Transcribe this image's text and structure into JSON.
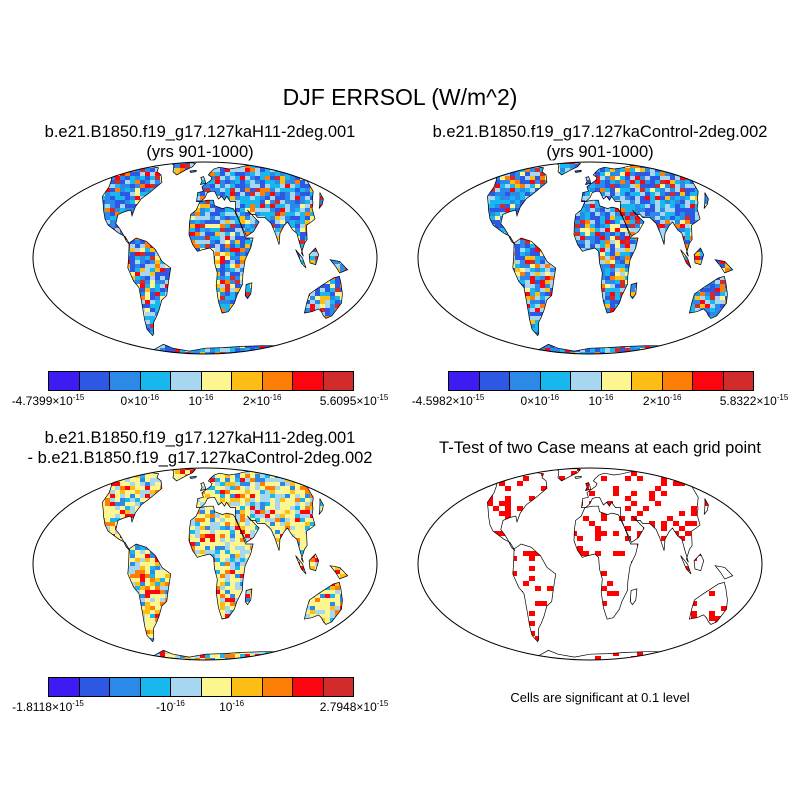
{
  "main_title": "DJF ERRSOL (W/m^2)",
  "panels": [
    {
      "id": "p1",
      "title_lines": [
        "b.e21.B1850.f19_g17.127kaH11-2deg.001",
        "(yrs 901-1000)"
      ],
      "colorbar": {
        "colors": [
          "#3c1cf2",
          "#2d58e3",
          "#2b8ae8",
          "#18b8ee",
          "#a6d6f0",
          "#fdf690",
          "#fcbd14",
          "#fd7e06",
          "#fb0511",
          "#d22b2c"
        ],
        "labels": [
          {
            "mant": "-4.7399",
            "exp": "-15"
          },
          {
            "mant": "0",
            "exp": "-16"
          },
          {
            "mant": "10",
            "exp": "-16",
            "plain": true
          },
          {
            "mant": "2",
            "exp": "-16"
          },
          {
            "mant": "5.6095",
            "exp": "-15"
          }
        ]
      },
      "palette": [
        "#2b8ae8",
        "#18b8ee",
        "#2d58e3",
        "#a6d6f0",
        "#fdf690",
        "#fcbd14",
        "#fd7e06",
        "#fb0511",
        "#d22b2c"
      ]
    },
    {
      "id": "p2",
      "title_lines": [
        "b.e21.B1850.f19_g17.127kaControl-2deg.002",
        "(yrs 901-1000)"
      ],
      "colorbar": {
        "colors": [
          "#3c1cf2",
          "#2d58e3",
          "#2b8ae8",
          "#18b8ee",
          "#a6d6f0",
          "#fdf690",
          "#fcbd14",
          "#fd7e06",
          "#fb0511",
          "#d22b2c"
        ],
        "labels": [
          {
            "mant": "-4.5982",
            "exp": "-15"
          },
          {
            "mant": "0",
            "exp": "-16"
          },
          {
            "mant": "10",
            "exp": "-16",
            "plain": true
          },
          {
            "mant": "2",
            "exp": "-16"
          },
          {
            "mant": "5.8322",
            "exp": "-15"
          }
        ]
      },
      "palette": [
        "#2b8ae8",
        "#18b8ee",
        "#2d58e3",
        "#a6d6f0",
        "#fdf690",
        "#fcbd14",
        "#fd7e06",
        "#fb0511",
        "#d22b2c"
      ]
    },
    {
      "id": "p3",
      "title_lines": [
        "b.e21.B1850.f19_g17.127kaH11-2deg.001",
        "- b.e21.B1850.f19_g17.127kaControl-2deg.002"
      ],
      "colorbar": {
        "colors": [
          "#3c1cf2",
          "#2d58e3",
          "#2b8ae8",
          "#18b8ee",
          "#a6d6f0",
          "#fdf690",
          "#fcbd14",
          "#fd7e06",
          "#fb0511",
          "#d22b2c"
        ],
        "labels": [
          {
            "mant": "-1.8118",
            "exp": "-15"
          },
          {
            "mant": "-10",
            "exp": "-16",
            "plain": true
          },
          {
            "mant": "10",
            "exp": "-16",
            "plain": true
          },
          {
            "mant": "2.7948",
            "exp": "-15"
          }
        ]
      },
      "palette": [
        "#fdf690",
        "#fdf690",
        "#a6d6f0",
        "#fdf690",
        "#a6d6f0",
        "#fcbd14",
        "#18b8ee",
        "#fd7e06",
        "#2b8ae8",
        "#fb0511"
      ]
    },
    {
      "id": "p4",
      "title_lines": [
        "T-Test of two Case means at each grid point"
      ],
      "note": "Cells are significant at 0.1 level",
      "palette": [
        "#ff0000"
      ]
    }
  ],
  "colors": {
    "ocean": "#ffffff",
    "coast": "#000000"
  }
}
